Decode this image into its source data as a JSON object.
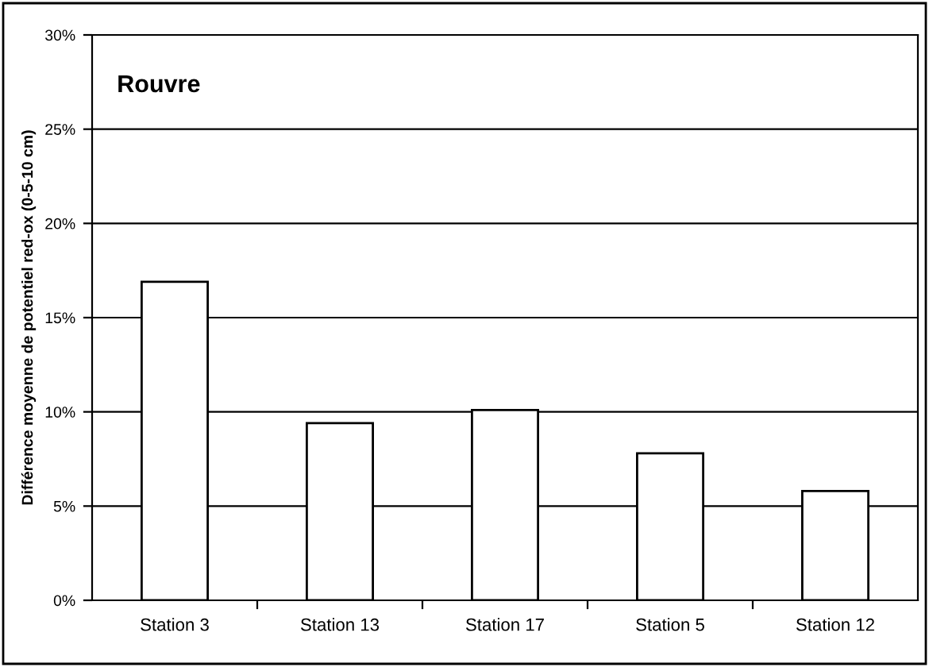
{
  "chart_data": {
    "type": "bar",
    "title": "Rouvre",
    "ylabel": "Différence moyenne de potentiel red-ox (0-5-10 cm)",
    "categories": [
      "Station 3",
      "Station 13",
      "Station 17",
      "Station 5",
      "Station 12"
    ],
    "values": [
      16.9,
      9.4,
      10.1,
      7.8,
      5.8
    ],
    "color": "#ffffff",
    "ylim": [
      0,
      30
    ],
    "yticks": [
      {
        "value": 0,
        "label": "0%"
      },
      {
        "value": 5,
        "label": "5%"
      },
      {
        "value": 10,
        "label": "10%"
      },
      {
        "value": 15,
        "label": "15%"
      },
      {
        "value": 20,
        "label": "20%"
      },
      {
        "value": 25,
        "label": "25%"
      },
      {
        "value": 30,
        "label": "30%"
      }
    ],
    "grid": "y",
    "legend": false
  }
}
